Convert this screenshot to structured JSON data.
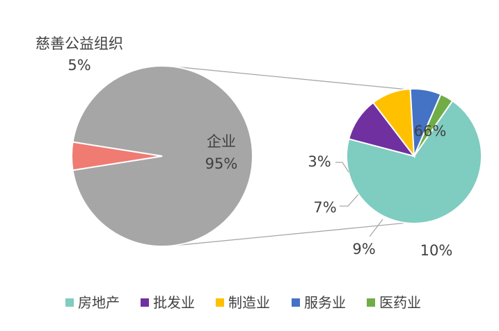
{
  "chart_data": {
    "type": "pie",
    "subtype": "pie-of-pie",
    "main_pie": {
      "slices": [
        {
          "label": "企业",
          "value": 95,
          "value_label": "95%",
          "color": "#A6A6A6"
        },
        {
          "label": "慈善公益组织",
          "value": 5,
          "value_label": "5%",
          "color": "#EF7B73"
        }
      ]
    },
    "secondary_pie": {
      "breakdown_of": "企业",
      "slices": [
        {
          "label": "房地产",
          "value": 66,
          "value_label": "66%",
          "color": "#7FCCC0"
        },
        {
          "label": "批发业",
          "value": 10,
          "value_label": "10%",
          "color": "#7030A0"
        },
        {
          "label": "制造业",
          "value": 9,
          "value_label": "9%",
          "color": "#FFC000"
        },
        {
          "label": "服务业",
          "value": 7,
          "value_label": "7%",
          "color": "#4472C4"
        },
        {
          "label": "医药业",
          "value": 3,
          "value_label": "3%",
          "color": "#70AD47"
        }
      ]
    },
    "legend": {
      "position": "bottom",
      "entries": [
        "房地产",
        "批发业",
        "制造业",
        "服务业",
        "医药业"
      ]
    },
    "title": ""
  }
}
